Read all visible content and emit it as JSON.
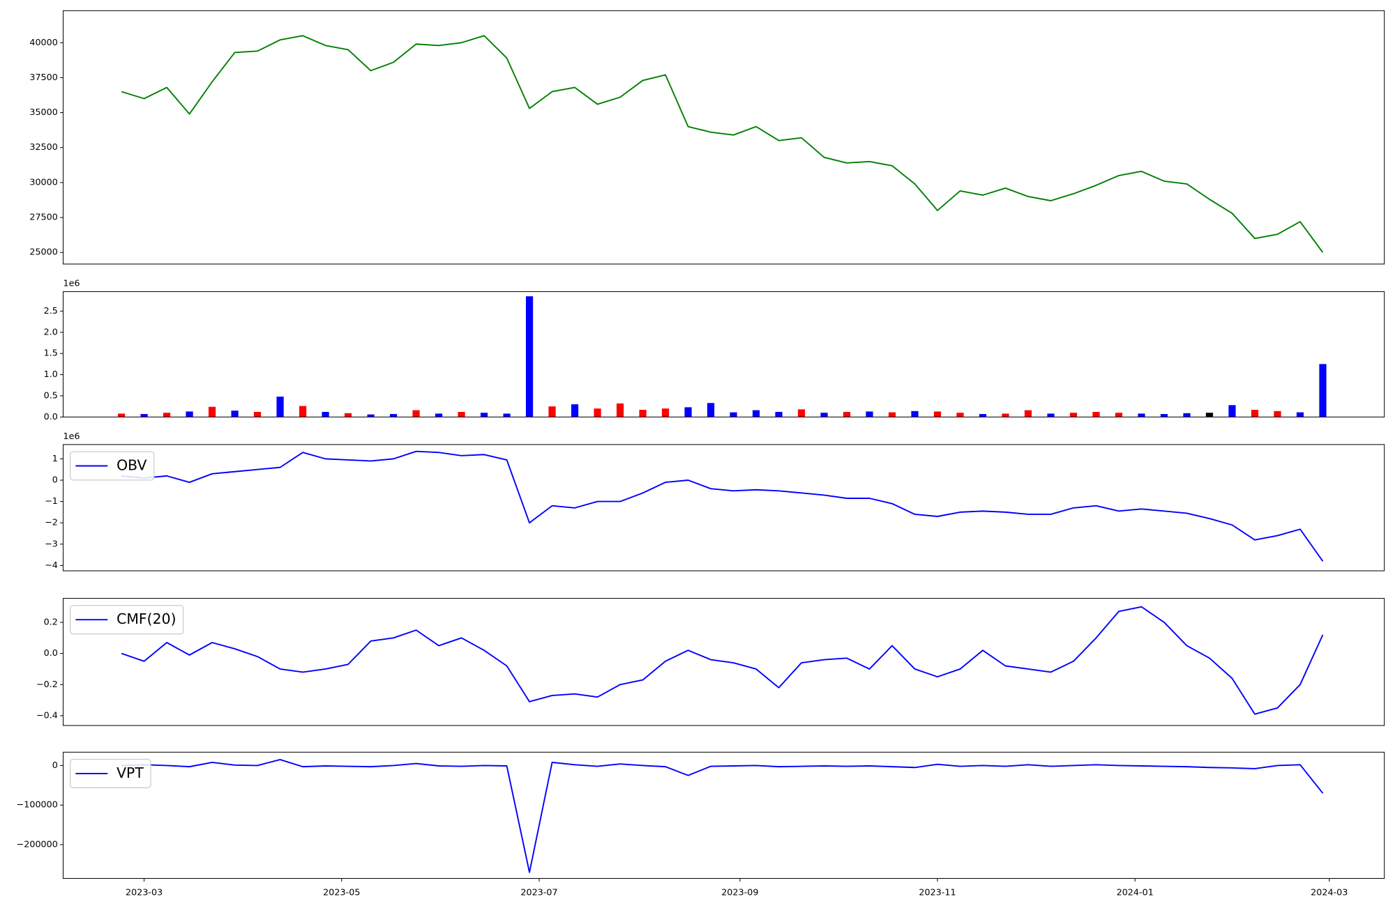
{
  "chart_data": [
    {
      "type": "line",
      "x": [
        "2023-02-22",
        "2023-03-01",
        "2023-03-08",
        "2023-03-15",
        "2023-03-22",
        "2023-03-29",
        "2023-04-05",
        "2023-04-12",
        "2023-04-19",
        "2023-04-26",
        "2023-05-03",
        "2023-05-10",
        "2023-05-17",
        "2023-05-24",
        "2023-05-31",
        "2023-06-07",
        "2023-06-14",
        "2023-06-21",
        "2023-06-28",
        "2023-07-05",
        "2023-07-12",
        "2023-07-19",
        "2023-07-26",
        "2023-08-02",
        "2023-08-09",
        "2023-08-16",
        "2023-08-23",
        "2023-08-30",
        "2023-09-06",
        "2023-09-13",
        "2023-09-20",
        "2023-09-27",
        "2023-10-04",
        "2023-10-11",
        "2023-10-18",
        "2023-10-25",
        "2023-11-01",
        "2023-11-08",
        "2023-11-15",
        "2023-11-22",
        "2023-11-29",
        "2023-12-06",
        "2023-12-13",
        "2023-12-20",
        "2023-12-27",
        "2024-01-03",
        "2024-01-10",
        "2024-01-17",
        "2024-01-24",
        "2024-01-31",
        "2024-02-07",
        "2024-02-14",
        "2024-02-21",
        "2024-02-28"
      ],
      "xlim": [
        "2023-02-04",
        "2024-03-18"
      ],
      "ylim": [
        24170,
        42290
      ],
      "yticks": [
        25000,
        27500,
        30000,
        32500,
        35000,
        37500,
        40000
      ],
      "series": [
        {
          "color": "#008000",
          "values": [
            36500,
            36000,
            36800,
            34900,
            37200,
            39300,
            39400,
            40200,
            40500,
            39800,
            39500,
            38000,
            38600,
            39900,
            39800,
            40000,
            40500,
            38900,
            35300,
            36500,
            36800,
            35600,
            36100,
            37300,
            37700,
            34000,
            33600,
            33400,
            34000,
            33000,
            33200,
            31800,
            31400,
            31500,
            31200,
            29900,
            28000,
            29400,
            29100,
            29600,
            29000,
            28700,
            29200,
            29800,
            30500,
            30800,
            30100,
            29900,
            28800,
            27800,
            26000,
            26300,
            27200,
            25000
          ]
        }
      ]
    },
    {
      "type": "bar",
      "x": [
        "2023-02-22",
        "2023-03-01",
        "2023-03-08",
        "2023-03-15",
        "2023-03-22",
        "2023-03-29",
        "2023-04-05",
        "2023-04-12",
        "2023-04-19",
        "2023-04-26",
        "2023-05-03",
        "2023-05-10",
        "2023-05-17",
        "2023-05-24",
        "2023-05-31",
        "2023-06-07",
        "2023-06-14",
        "2023-06-21",
        "2023-06-28",
        "2023-07-05",
        "2023-07-12",
        "2023-07-19",
        "2023-07-26",
        "2023-08-02",
        "2023-08-09",
        "2023-08-16",
        "2023-08-23",
        "2023-08-30",
        "2023-09-06",
        "2023-09-13",
        "2023-09-20",
        "2023-09-27",
        "2023-10-04",
        "2023-10-11",
        "2023-10-18",
        "2023-10-25",
        "2023-11-01",
        "2023-11-08",
        "2023-11-15",
        "2023-11-22",
        "2023-11-29",
        "2023-12-06",
        "2023-12-13",
        "2023-12-20",
        "2023-12-27",
        "2024-01-03",
        "2024-01-10",
        "2024-01-17",
        "2024-01-24",
        "2024-01-31",
        "2024-02-07",
        "2024-02-14",
        "2024-02-21",
        "2024-02-28"
      ],
      "xlim": [
        "2023-02-04",
        "2024-03-18"
      ],
      "ylim": [
        0,
        2960000
      ],
      "offset_label": "1e6",
      "yticks": [
        {
          "value": 0,
          "label": "0.0"
        },
        {
          "value": 500000,
          "label": "0.5"
        },
        {
          "value": 1000000,
          "label": "1.0"
        },
        {
          "value": 1500000,
          "label": "1.5"
        },
        {
          "value": 2000000,
          "label": "2.0"
        },
        {
          "value": 2500000,
          "label": "2.5"
        }
      ],
      "values": [
        80000,
        70000,
        100000,
        130000,
        240000,
        150000,
        120000,
        480000,
        260000,
        120000,
        90000,
        60000,
        70000,
        160000,
        80000,
        120000,
        100000,
        80000,
        2850000,
        250000,
        300000,
        200000,
        320000,
        170000,
        200000,
        230000,
        330000,
        110000,
        160000,
        120000,
        180000,
        100000,
        120000,
        130000,
        110000,
        140000,
        130000,
        100000,
        70000,
        80000,
        160000,
        80000,
        100000,
        120000,
        100000,
        80000,
        70000,
        90000,
        100000,
        280000,
        170000,
        140000,
        110000,
        1250000
      ],
      "colors": [
        "red",
        "blue",
        "red",
        "blue",
        "red",
        "blue",
        "red",
        "blue",
        "red",
        "blue",
        "red",
        "blue",
        "blue",
        "red",
        "blue",
        "red",
        "blue",
        "blue",
        "blue",
        "red",
        "blue",
        "red",
        "red",
        "red",
        "red",
        "blue",
        "blue",
        "blue",
        "blue",
        "blue",
        "red",
        "blue",
        "red",
        "blue",
        "red",
        "blue",
        "red",
        "red",
        "blue",
        "red",
        "red",
        "blue",
        "red",
        "red",
        "red",
        "blue",
        "blue",
        "blue",
        "black",
        "blue",
        "red",
        "red",
        "blue",
        "blue"
      ]
    },
    {
      "type": "line",
      "x": [
        "2023-02-22",
        "2023-03-01",
        "2023-03-08",
        "2023-03-15",
        "2023-03-22",
        "2023-03-29",
        "2023-04-05",
        "2023-04-12",
        "2023-04-19",
        "2023-04-26",
        "2023-05-03",
        "2023-05-10",
        "2023-05-17",
        "2023-05-24",
        "2023-05-31",
        "2023-06-07",
        "2023-06-14",
        "2023-06-21",
        "2023-06-28",
        "2023-07-05",
        "2023-07-12",
        "2023-07-19",
        "2023-07-26",
        "2023-08-02",
        "2023-08-09",
        "2023-08-16",
        "2023-08-23",
        "2023-08-30",
        "2023-09-06",
        "2023-09-13",
        "2023-09-20",
        "2023-09-27",
        "2023-10-04",
        "2023-10-11",
        "2023-10-18",
        "2023-10-25",
        "2023-11-01",
        "2023-11-08",
        "2023-11-15",
        "2023-11-22",
        "2023-11-29",
        "2023-12-06",
        "2023-12-13",
        "2023-12-20",
        "2023-12-27",
        "2024-01-03",
        "2024-01-10",
        "2024-01-17",
        "2024-01-24",
        "2024-01-31",
        "2024-02-07",
        "2024-02-14",
        "2024-02-21",
        "2024-02-28"
      ],
      "xlim": [
        "2023-02-04",
        "2024-03-18"
      ],
      "ylim": [
        -4250000,
        1670000
      ],
      "offset_label": "1e6",
      "yticks": [
        {
          "value": -4000000,
          "label": "−4"
        },
        {
          "value": -3000000,
          "label": "−3"
        },
        {
          "value": -2000000,
          "label": "−2"
        },
        {
          "value": -1000000,
          "label": "−1"
        },
        {
          "value": 0,
          "label": "0"
        },
        {
          "value": 1000000,
          "label": "1"
        }
      ],
      "legend": "upper left",
      "series": [
        {
          "name": "OBV",
          "color": "#0000ff",
          "values": [
            200000,
            100000,
            200000,
            -100000,
            300000,
            400000,
            500000,
            600000,
            1300000,
            1000000,
            950000,
            900000,
            1000000,
            1350000,
            1300000,
            1150000,
            1200000,
            950000,
            -2000000,
            -1200000,
            -1300000,
            -1000000,
            -1000000,
            -600000,
            -100000,
            0,
            -400000,
            -500000,
            -450000,
            -500000,
            -600000,
            -700000,
            -850000,
            -850000,
            -1100000,
            -1600000,
            -1700000,
            -1500000,
            -1450000,
            -1500000,
            -1600000,
            -1600000,
            -1300000,
            -1200000,
            -1450000,
            -1350000,
            -1450000,
            -1550000,
            -1800000,
            -2100000,
            -2800000,
            -2600000,
            -2300000,
            -3800000
          ]
        }
      ]
    },
    {
      "type": "line",
      "x": [
        "2023-02-22",
        "2023-03-01",
        "2023-03-08",
        "2023-03-15",
        "2023-03-22",
        "2023-03-29",
        "2023-04-05",
        "2023-04-12",
        "2023-04-19",
        "2023-04-26",
        "2023-05-03",
        "2023-05-10",
        "2023-05-17",
        "2023-05-24",
        "2023-05-31",
        "2023-06-07",
        "2023-06-14",
        "2023-06-21",
        "2023-06-28",
        "2023-07-05",
        "2023-07-12",
        "2023-07-19",
        "2023-07-26",
        "2023-08-02",
        "2023-08-09",
        "2023-08-16",
        "2023-08-23",
        "2023-08-30",
        "2023-09-06",
        "2023-09-13",
        "2023-09-20",
        "2023-09-27",
        "2023-10-04",
        "2023-10-11",
        "2023-10-18",
        "2023-10-25",
        "2023-11-01",
        "2023-11-08",
        "2023-11-15",
        "2023-11-22",
        "2023-11-29",
        "2023-12-06",
        "2023-12-13",
        "2023-12-20",
        "2023-12-27",
        "2024-01-03",
        "2024-01-10",
        "2024-01-17",
        "2024-01-24",
        "2024-01-31",
        "2024-02-07",
        "2024-02-14",
        "2024-02-21",
        "2024-02-28"
      ],
      "xlim": [
        "2023-02-04",
        "2024-03-18"
      ],
      "ylim": [
        -0.463,
        0.354
      ],
      "yticks": [
        {
          "value": -0.4,
          "label": "−0.4"
        },
        {
          "value": -0.2,
          "label": "−0.2"
        },
        {
          "value": 0,
          "label": "0.0"
        },
        {
          "value": 0.2,
          "label": "0.2"
        }
      ],
      "legend": "upper left",
      "series": [
        {
          "name": "CMF(20)",
          "color": "#0000ff",
          "values": [
            0.0,
            -0.05,
            0.07,
            -0.01,
            0.07,
            0.03,
            -0.02,
            -0.1,
            -0.12,
            -0.1,
            -0.07,
            0.08,
            0.1,
            0.15,
            0.05,
            0.1,
            0.02,
            -0.08,
            -0.31,
            -0.27,
            -0.26,
            -0.28,
            -0.2,
            -0.17,
            -0.05,
            0.02,
            -0.04,
            -0.06,
            -0.1,
            -0.22,
            -0.06,
            -0.04,
            -0.03,
            -0.1,
            0.05,
            -0.1,
            -0.15,
            -0.1,
            0.02,
            -0.08,
            -0.1,
            -0.12,
            -0.05,
            0.1,
            0.27,
            0.3,
            0.2,
            0.05,
            -0.03,
            -0.16,
            -0.39,
            -0.35,
            -0.2,
            0.12
          ]
        }
      ]
    },
    {
      "type": "line",
      "x": [
        "2023-02-22",
        "2023-03-01",
        "2023-03-08",
        "2023-03-15",
        "2023-03-22",
        "2023-03-29",
        "2023-04-05",
        "2023-04-12",
        "2023-04-19",
        "2023-04-26",
        "2023-05-03",
        "2023-05-10",
        "2023-05-17",
        "2023-05-24",
        "2023-05-31",
        "2023-06-07",
        "2023-06-14",
        "2023-06-21",
        "2023-06-28",
        "2023-07-05",
        "2023-07-12",
        "2023-07-19",
        "2023-07-26",
        "2023-08-02",
        "2023-08-09",
        "2023-08-16",
        "2023-08-23",
        "2023-08-30",
        "2023-09-06",
        "2023-09-13",
        "2023-09-20",
        "2023-09-27",
        "2023-10-04",
        "2023-10-11",
        "2023-10-18",
        "2023-10-25",
        "2023-11-01",
        "2023-11-08",
        "2023-11-15",
        "2023-11-22",
        "2023-11-29",
        "2023-12-06",
        "2023-12-13",
        "2023-12-20",
        "2023-12-27",
        "2024-01-03",
        "2024-01-10",
        "2024-01-17",
        "2024-01-24",
        "2024-01-31",
        "2024-02-07",
        "2024-02-14",
        "2024-02-21",
        "2024-02-28"
      ],
      "xlim": [
        "2023-02-04",
        "2024-03-18"
      ],
      "ylim": [
        -285400,
        33700
      ],
      "yticks": [
        {
          "value": -200000,
          "label": "−200000"
        },
        {
          "value": -100000,
          "label": "−100000"
        },
        0
      ],
      "xticks": [
        {
          "value": "2023-03-01",
          "label": "2023-03"
        },
        {
          "value": "2023-05-01",
          "label": "2023-05"
        },
        {
          "value": "2023-07-01",
          "label": "2023-07"
        },
        {
          "value": "2023-09-01",
          "label": "2023-09"
        },
        {
          "value": "2023-11-01",
          "label": "2023-11"
        },
        {
          "value": "2024-01-01",
          "label": "2024-01"
        },
        {
          "value": "2024-03-01",
          "label": "2024-03"
        }
      ],
      "legend": "upper left",
      "series": [
        {
          "name": "VPT",
          "color": "#0000ff",
          "values": [
            0,
            2000,
            0,
            -3000,
            8000,
            1000,
            0,
            15000,
            -3000,
            -1000,
            -2000,
            -3000,
            0,
            5000,
            -1000,
            -2000,
            0,
            -1000,
            -270000,
            8000,
            2000,
            -2000,
            4000,
            0,
            -3000,
            -25000,
            -2000,
            -1000,
            0,
            -3000,
            -2000,
            -1000,
            -2000,
            -1000,
            -3000,
            -5000,
            3000,
            -2000,
            0,
            -2000,
            2000,
            -2000,
            0,
            2000,
            0,
            -1000,
            -2000,
            -3000,
            -5000,
            -6000,
            -8000,
            0,
            2000,
            -70000
          ]
        }
      ]
    }
  ]
}
